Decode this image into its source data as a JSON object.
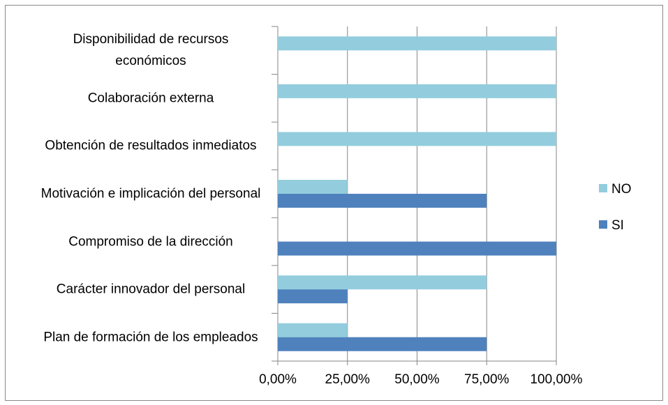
{
  "chart_data": {
    "type": "hbar",
    "categories": [
      "Disponibilidad de recursos económicos",
      "Colaboración externa",
      "Obtención de resultados inmediatos",
      "Motivación e implicación del personal",
      "Compromiso de la dirección",
      "Carácter innovador del personal",
      "Plan de formación de los empleados"
    ],
    "series": [
      {
        "name": "NO",
        "color": "#93cddd",
        "values": [
          100,
          100,
          100,
          25,
          0,
          75,
          25
        ]
      },
      {
        "name": "SI",
        "color": "#4f81bd",
        "values": [
          0,
          0,
          0,
          75,
          100,
          25,
          75
        ]
      }
    ],
    "xlim": [
      0,
      100
    ],
    "xticks": [
      {
        "value": 0,
        "label": "0,00%"
      },
      {
        "value": 25,
        "label": "25,00%"
      },
      {
        "value": 50,
        "label": "50,00%"
      },
      {
        "value": 75,
        "label": "75,00%"
      },
      {
        "value": 100,
        "label": "100,00%"
      }
    ],
    "grid": true,
    "legend": "right"
  }
}
